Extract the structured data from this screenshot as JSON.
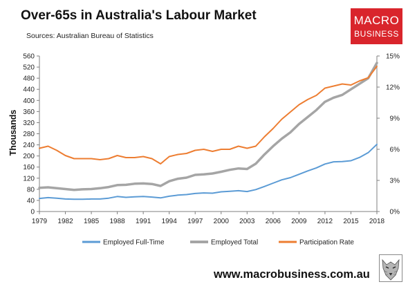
{
  "header": {
    "title": "Over-65s in Australia's Labour Market",
    "subtitle": "Sources: Australian Bureau of Statistics"
  },
  "logo": {
    "line1": "MACRO",
    "line2": "BUSINESS"
  },
  "footer": {
    "website": "www.macrobusiness.com.au"
  },
  "colors": {
    "full_time": "#5b9bd5",
    "employed_total": "#a5a5a5",
    "participation": "#ed7d31",
    "logo_bg": "#d9252c"
  },
  "chart_data": {
    "type": "line",
    "ylabel": "Thousands",
    "ylim": [
      0,
      560
    ],
    "y_ticks": [
      0,
      40,
      80,
      120,
      160,
      200,
      240,
      280,
      320,
      360,
      400,
      440,
      480,
      520,
      560
    ],
    "y2lim": [
      0,
      15
    ],
    "y2_ticks": [
      "0%",
      "3%",
      "6%",
      "9%",
      "12%",
      "15%"
    ],
    "y2_tick_values": [
      0,
      3,
      6,
      9,
      12,
      15
    ],
    "xlim": [
      1979,
      2018
    ],
    "x_ticks": [
      1979,
      1982,
      1985,
      1988,
      1991,
      1994,
      1997,
      2000,
      2003,
      2006,
      2009,
      2012,
      2015,
      2018
    ],
    "grid": false,
    "legend_position": "bottom",
    "series": [
      {
        "name": "Employed Full-Time",
        "axis": "left",
        "x": [
          1979,
          1980,
          1981,
          1982,
          1983,
          1984,
          1985,
          1986,
          1987,
          1988,
          1989,
          1990,
          1991,
          1992,
          1993,
          1994,
          1995,
          1996,
          1997,
          1998,
          1999,
          2000,
          2001,
          2002,
          2003,
          2004,
          2005,
          2006,
          2007,
          2008,
          2009,
          2010,
          2011,
          2012,
          2013,
          2014,
          2015,
          2016,
          2017,
          2018
        ],
        "values": [
          47,
          50,
          48,
          45,
          44,
          44,
          45,
          45,
          48,
          54,
          51,
          53,
          54,
          52,
          49,
          55,
          59,
          61,
          65,
          67,
          66,
          71,
          73,
          75,
          72,
          79,
          90,
          102,
          114,
          122,
          134,
          146,
          157,
          171,
          179,
          180,
          183,
          195,
          212,
          242
        ]
      },
      {
        "name": "Employed Total",
        "axis": "left",
        "x": [
          1979,
          1980,
          1981,
          1982,
          1983,
          1984,
          1985,
          1986,
          1987,
          1988,
          1989,
          1990,
          1991,
          1992,
          1993,
          1994,
          1995,
          1996,
          1997,
          1998,
          1999,
          2000,
          2001,
          2002,
          2003,
          2004,
          2005,
          2006,
          2007,
          2008,
          2009,
          2010,
          2011,
          2012,
          2013,
          2014,
          2015,
          2016,
          2017,
          2018
        ],
        "values": [
          85,
          87,
          84,
          81,
          78,
          80,
          81,
          84,
          88,
          95,
          96,
          100,
          101,
          99,
          92,
          109,
          118,
          122,
          132,
          134,
          137,
          143,
          150,
          155,
          153,
          172,
          205,
          235,
          262,
          285,
          315,
          340,
          365,
          395,
          410,
          420,
          440,
          460,
          480,
          535
        ]
      },
      {
        "name": "Participation Rate",
        "axis": "right",
        "x": [
          1979,
          1980,
          1981,
          1982,
          1983,
          1984,
          1985,
          1986,
          1987,
          1988,
          1989,
          1990,
          1991,
          1992,
          1993,
          1994,
          1995,
          1996,
          1997,
          1998,
          1999,
          2000,
          2001,
          2002,
          2003,
          2004,
          2005,
          2006,
          2007,
          2008,
          2009,
          2010,
          2011,
          2012,
          2013,
          2014,
          2015,
          2016,
          2017,
          2018
        ],
        "values": [
          6.1,
          6.3,
          5.9,
          5.4,
          5.1,
          5.1,
          5.1,
          5.0,
          5.1,
          5.4,
          5.2,
          5.2,
          5.3,
          5.1,
          4.6,
          5.3,
          5.5,
          5.6,
          5.9,
          6.0,
          5.8,
          6.0,
          6.0,
          6.3,
          6.1,
          6.3,
          7.2,
          8.0,
          8.9,
          9.6,
          10.3,
          10.8,
          11.2,
          11.9,
          12.1,
          12.3,
          12.2,
          12.6,
          12.9,
          14.0
        ]
      }
    ]
  }
}
